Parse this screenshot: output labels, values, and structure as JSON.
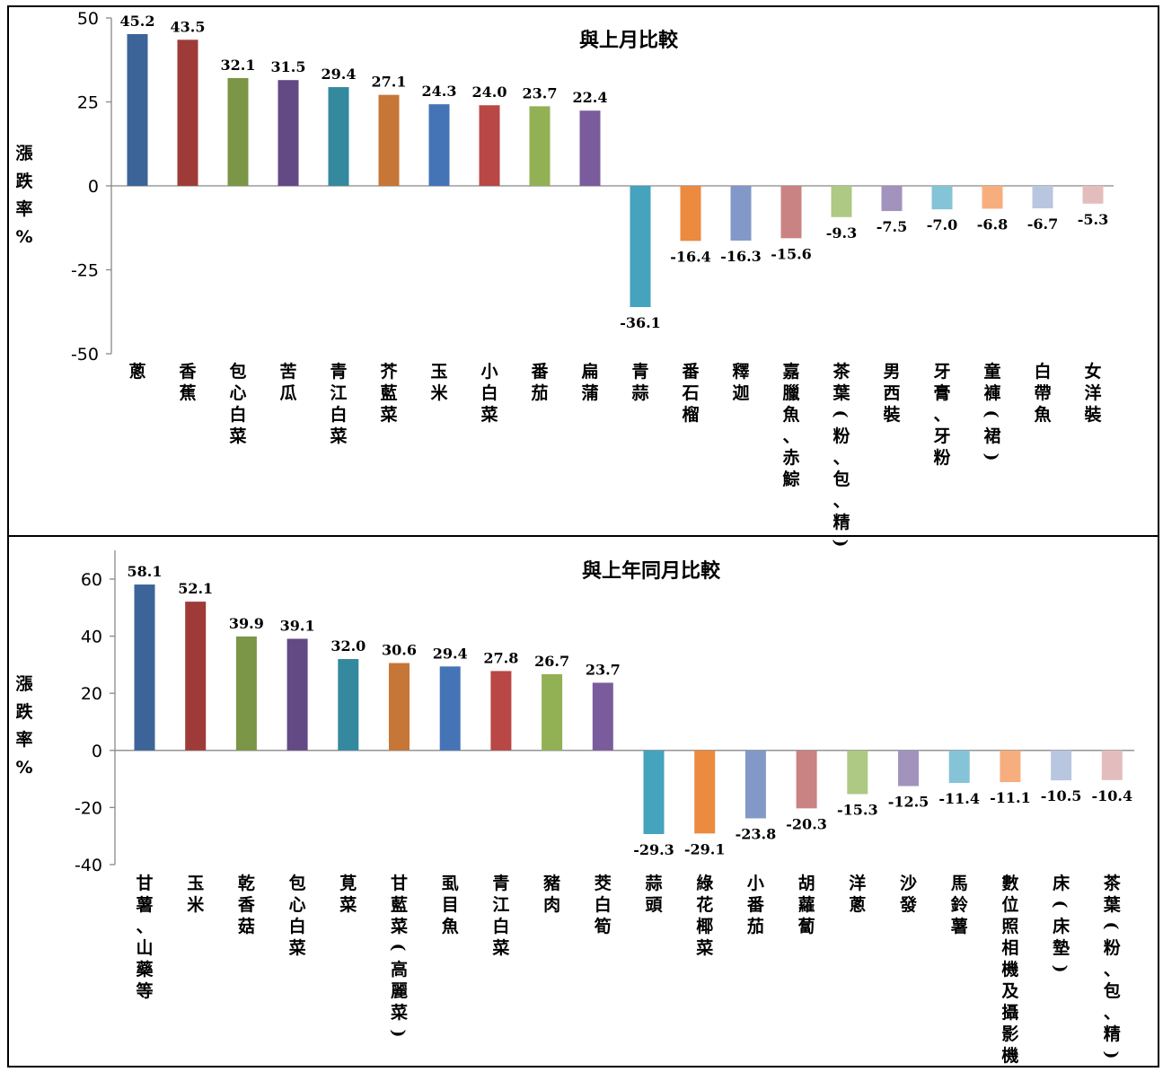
{
  "chart_data": [
    {
      "type": "bar",
      "title": "與上月比較",
      "ylabel": "漲跌率%",
      "ylim": [
        -50,
        50
      ],
      "yticks": [
        50,
        25,
        0,
        -25,
        -50
      ],
      "categories": [
        "蔥",
        "香蕉",
        "包心白菜",
        "苦瓜",
        "青江白菜",
        "芥藍菜",
        "玉米",
        "小白菜",
        "番茄",
        "扁蒲",
        "青蒜",
        "番石榴",
        "釋迦",
        "嘉臘魚、赤鯮",
        "茶葉(粉、包、精)",
        "男西裝",
        "牙膏、牙粉",
        "童褲(裙)",
        "白帶魚",
        "女洋裝"
      ],
      "values": [
        45.2,
        43.5,
        32.1,
        31.5,
        29.4,
        27.1,
        24.3,
        24.0,
        23.7,
        22.4,
        -36.1,
        -16.4,
        -16.3,
        -15.6,
        -9.3,
        -7.5,
        -7.0,
        -6.8,
        -6.7,
        -5.3
      ],
      "value_labels": [
        "45.2",
        "43.5",
        "32.1",
        "31.5",
        "29.4",
        "27.1",
        "24.3",
        "24.0",
        "23.7",
        "22.4",
        "-36.1",
        "-16.4",
        "-16.3",
        "-15.6",
        "-9.3",
        "-7.5",
        "-7.0",
        "-6.8",
        "-6.7",
        "-5.3"
      ],
      "colors": [
        "#3C6499",
        "#9E3B38",
        "#7A9646",
        "#634A84",
        "#34899E",
        "#C67637",
        "#4474B6",
        "#B84745",
        "#92B154",
        "#7A5C9C",
        "#45A3BE",
        "#EC8A3F",
        "#8299C8",
        "#C98382",
        "#ADC984",
        "#A293BC",
        "#85C4D6",
        "#F7AE7E",
        "#B9C6DF",
        "#E3BDBD"
      ],
      "legend": "none"
    },
    {
      "type": "bar",
      "title": "與上年同月比較",
      "ylabel": "漲跌率%",
      "ylim": [
        -40,
        70
      ],
      "yticks": [
        60,
        40,
        20,
        0,
        -20,
        -40
      ],
      "categories": [
        "甘薯、山藥等",
        "玉米",
        "乾香菇",
        "包心白菜",
        "莧菜",
        "甘藍菜(高麗菜)",
        "虱目魚",
        "青江白菜",
        "豬肉",
        "茭白筍",
        "蒜頭",
        "綠花椰菜",
        "小番茄",
        "胡蘿蔔",
        "洋蔥",
        "沙發",
        "馬鈴薯",
        "數位照相機及攝影機",
        "床(床墊)",
        "茶葉(粉、包、精)"
      ],
      "values": [
        58.1,
        52.1,
        39.9,
        39.1,
        32.0,
        30.6,
        29.4,
        27.8,
        26.7,
        23.7,
        -29.3,
        -29.1,
        -23.8,
        -20.3,
        -15.3,
        -12.5,
        -11.4,
        -11.1,
        -10.5,
        -10.4
      ],
      "value_labels": [
        "58.1",
        "52.1",
        "39.9",
        "39.1",
        "32.0",
        "30.6",
        "29.4",
        "27.8",
        "26.7",
        "23.7",
        "-29.3",
        "-29.1",
        "-23.8",
        "-20.3",
        "-15.3",
        "-12.5",
        "-11.4",
        "-11.1",
        "-10.5",
        "-10.4"
      ],
      "colors": [
        "#3C6499",
        "#9E3B38",
        "#7A9646",
        "#634A84",
        "#34899E",
        "#C67637",
        "#4474B6",
        "#B84745",
        "#92B154",
        "#7A5C9C",
        "#45A3BE",
        "#EC8A3F",
        "#8299C8",
        "#C98382",
        "#ADC984",
        "#A293BC",
        "#85C4D6",
        "#F7AE7E",
        "#B9C6DF",
        "#E3BDBD"
      ],
      "legend": "none"
    }
  ]
}
